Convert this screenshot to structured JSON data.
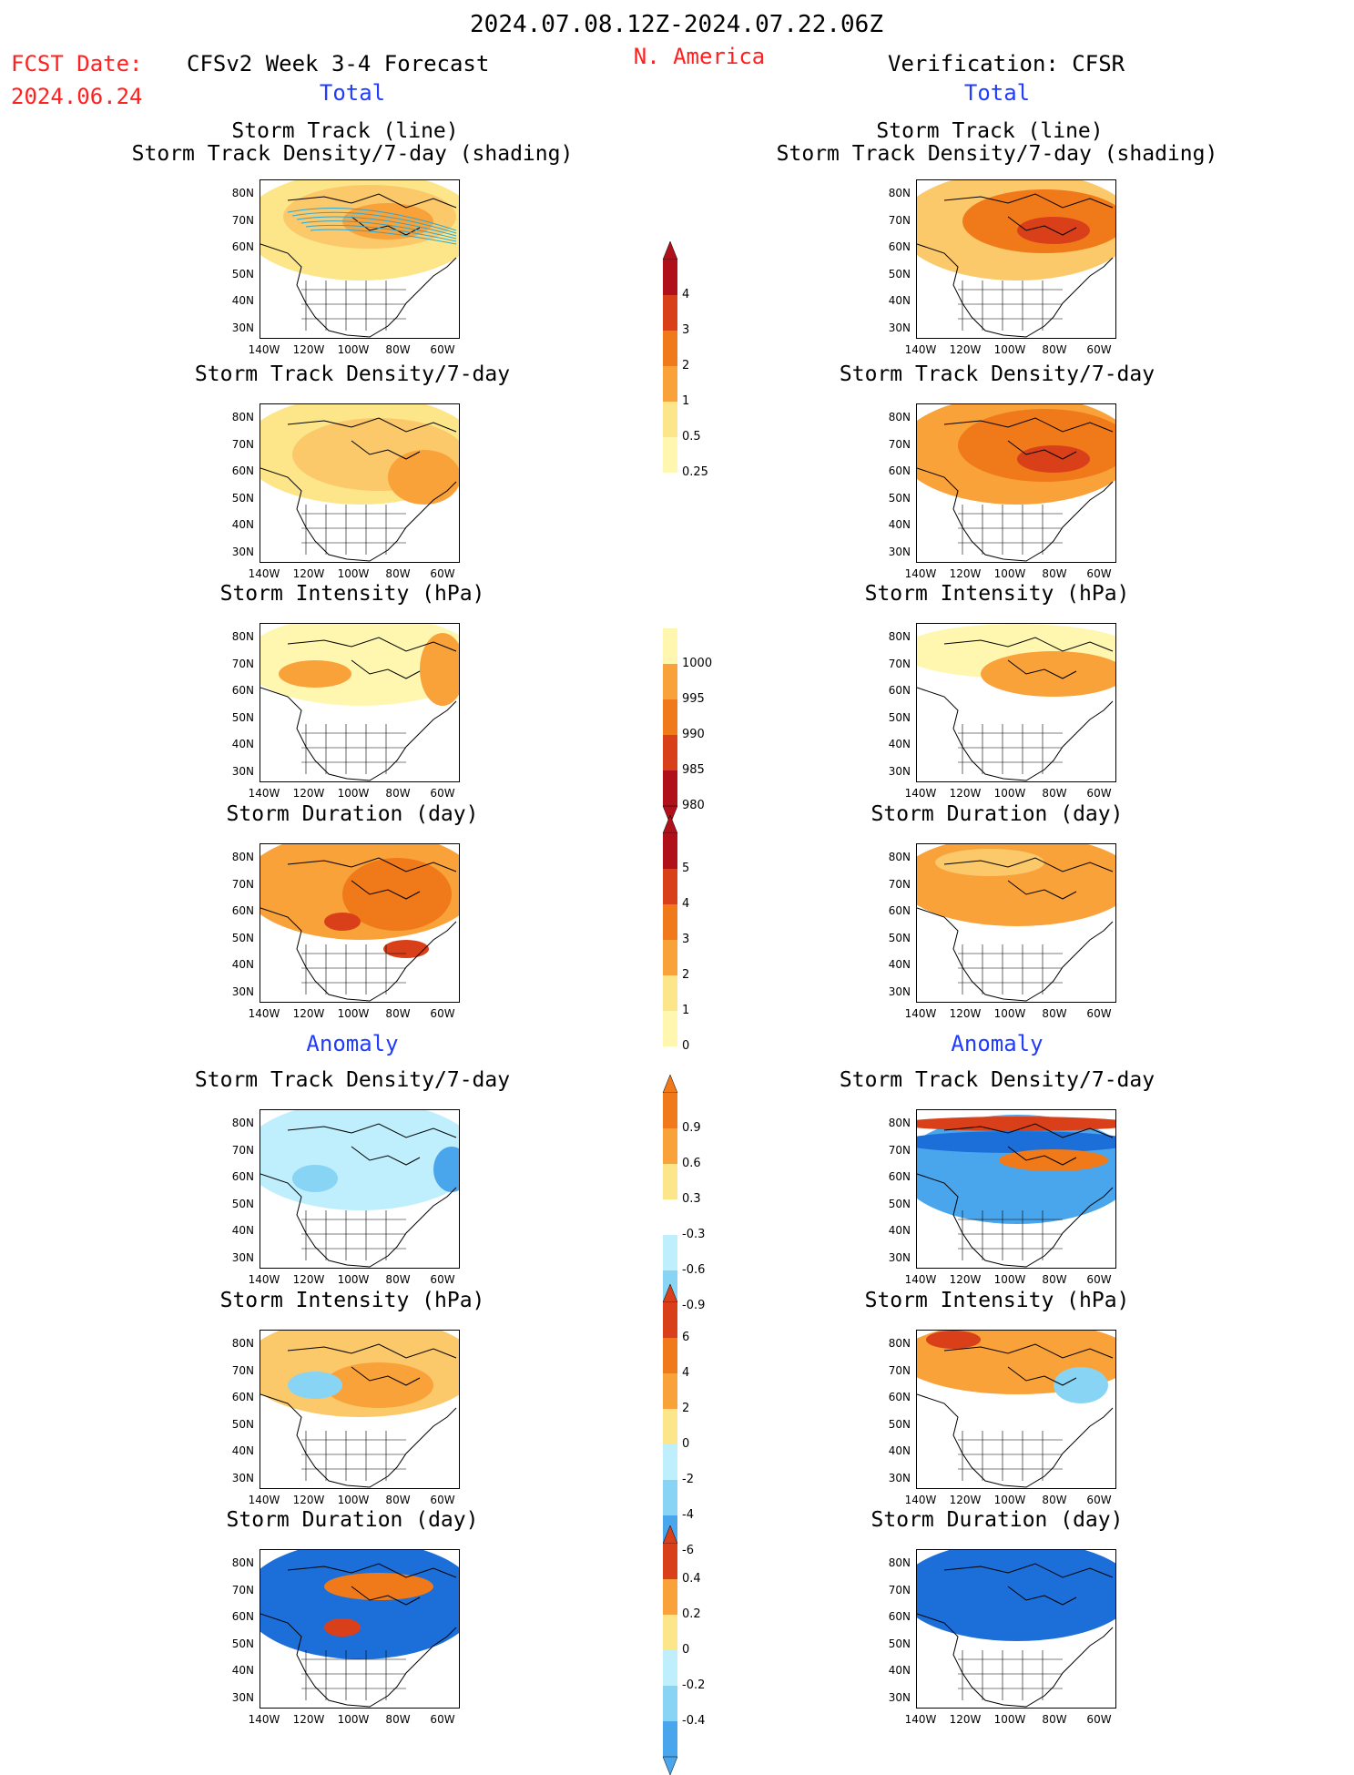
{
  "header": {
    "period": "2024.07.08.12Z-2024.07.22.06Z",
    "region": "N. America",
    "fcst_label": "FCST Date:",
    "fcst_date": "2024.06.24",
    "left_title": "CFSv2 Week 3-4 Forecast",
    "right_title": "Verification: CFSR"
  },
  "sections": {
    "total": "Total",
    "anomaly": "Anomaly"
  },
  "panel_titles": {
    "track_line": "Storm Track (line)",
    "track_shading": "Storm Track Density/7-day (shading)",
    "density": "Storm Track Density/7-day",
    "intensity": "Storm Intensity (hPa)",
    "duration": "Storm Duration (day)"
  },
  "axes": {
    "lat_labels": [
      "80N",
      "70N",
      "60N",
      "50N",
      "40N",
      "30N"
    ],
    "lon_labels": [
      "140W",
      "120W",
      "100W",
      "80W",
      "60W"
    ]
  },
  "colorbars": {
    "density_total": [
      "4",
      "3",
      "2",
      "1",
      "0.5",
      "0.25"
    ],
    "intensity_total": [
      "1000",
      "995",
      "990",
      "985",
      "980"
    ],
    "duration_total": [
      "5",
      "4",
      "3",
      "2",
      "1",
      "0"
    ],
    "density_anom": [
      "0.9",
      "0.6",
      "0.3",
      "-0.3",
      "-0.6",
      "-0.9"
    ],
    "intensity_anom": [
      "6",
      "4",
      "2",
      "0",
      "-2",
      "-4",
      "-6"
    ],
    "duration_anom": [
      "0.4",
      "0.2",
      "0",
      "-0.2",
      "-0.4"
    ]
  },
  "colors": {
    "title_red": "#ff2020",
    "section_blue": "#1f3cff",
    "warm": [
      "#fff7b0",
      "#fde68a",
      "#fbc86a",
      "#f9a23a",
      "#f07a1a",
      "#d9401a",
      "#b0101a"
    ],
    "cool": [
      "#bfeffd",
      "#88d4f5",
      "#4aa6ec",
      "#1c6fd8"
    ]
  }
}
